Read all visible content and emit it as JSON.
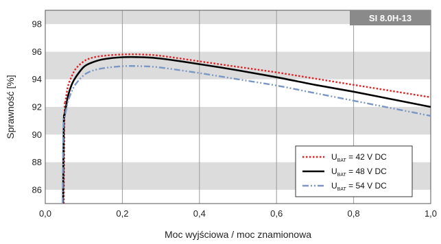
{
  "chart_data": {
    "type": "line",
    "badge": "SI 8.0H-13",
    "xlabel": "Moc wyjściowa / moc znamionowa",
    "ylabel": "Sprawność [%]",
    "xlim": [
      0,
      1
    ],
    "ylim": [
      85,
      99
    ],
    "x_ticks": [
      "0,0",
      "0,2",
      "0,4",
      "0,6",
      "0,8",
      "1,0"
    ],
    "y_ticks": [
      "86",
      "88",
      "90",
      "92",
      "94",
      "96",
      "98"
    ],
    "grid": "vertical lines, alternating horizontal bands",
    "legend_position": "bottom-right",
    "series": [
      {
        "name_main": "U",
        "name_sub": "BAT",
        "name_rest": " = 42 V DC",
        "color": "#e02020",
        "style": "dotted",
        "x": [
          0.048,
          0.05,
          0.052,
          0.055,
          0.06,
          0.07,
          0.08,
          0.1,
          0.12,
          0.15,
          0.2,
          0.25,
          0.3,
          0.4,
          0.5,
          0.6,
          0.7,
          0.8,
          0.9,
          1.0
        ],
        "y": [
          85.0,
          91.6,
          92.3,
          92.9,
          93.6,
          94.3,
          94.8,
          95.3,
          95.55,
          95.7,
          95.8,
          95.8,
          95.7,
          95.3,
          94.9,
          94.5,
          94.05,
          93.6,
          93.15,
          92.7
        ]
      },
      {
        "name_main": "U",
        "name_sub": "BAT",
        "name_rest": " = 48 V DC",
        "color": "#000000",
        "style": "solid",
        "x": [
          0.046,
          0.048,
          0.05,
          0.055,
          0.06,
          0.07,
          0.08,
          0.1,
          0.12,
          0.15,
          0.2,
          0.25,
          0.3,
          0.4,
          0.5,
          0.6,
          0.7,
          0.8,
          0.9,
          1.0
        ],
        "y": [
          85.0,
          90.8,
          91.4,
          92.2,
          92.9,
          93.7,
          94.2,
          94.9,
          95.2,
          95.45,
          95.6,
          95.6,
          95.5,
          95.1,
          94.65,
          94.15,
          93.6,
          93.1,
          92.55,
          92.0
        ]
      },
      {
        "name_main": "U",
        "name_sub": "BAT",
        "name_rest": " = 54 V DC",
        "color": "#7a96c4",
        "style": "dashdot",
        "x": [
          0.045,
          0.047,
          0.05,
          0.055,
          0.06,
          0.07,
          0.08,
          0.1,
          0.12,
          0.15,
          0.2,
          0.25,
          0.3,
          0.4,
          0.5,
          0.6,
          0.7,
          0.8,
          0.9,
          1.0
        ],
        "y": [
          85.0,
          90.5,
          91.2,
          91.9,
          92.5,
          93.2,
          93.7,
          94.3,
          94.6,
          94.8,
          94.95,
          94.95,
          94.85,
          94.45,
          94.0,
          93.55,
          93.0,
          92.45,
          91.9,
          91.35
        ]
      }
    ]
  }
}
